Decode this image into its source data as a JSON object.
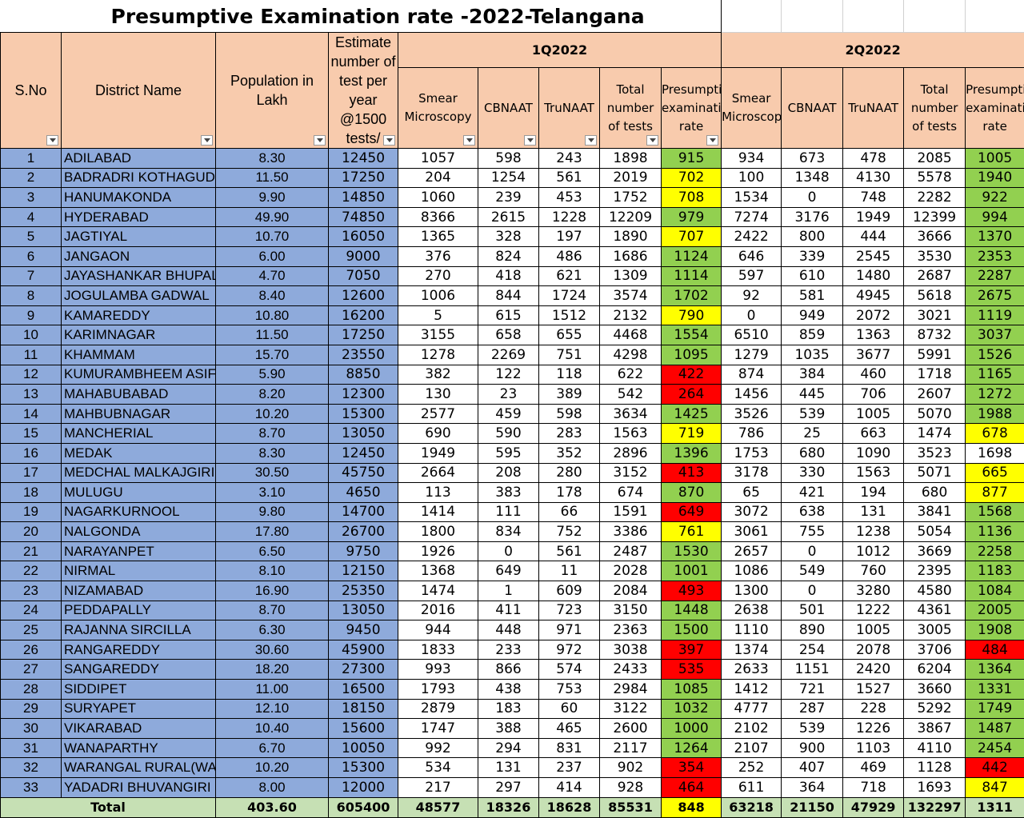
{
  "title": "Presumptive Examination rate -2022-Telangana",
  "headers": {
    "sno": "S.No",
    "district": "District Name",
    "population": "Population in Lakh",
    "estimate": "Estimate number of test per year @1500 tests/",
    "q1": "1Q2022",
    "q2": "2Q2022",
    "smear_q1": "Smear Microscopy",
    "smear_q2": "Smear Microscopy",
    "cbnaat": "CBNAAT",
    "trunaat": "TruNAAT",
    "total_tests": "Total number of tests",
    "pe_rate": "Presumptive examination rate"
  },
  "rows": [
    {
      "sno": "1",
      "name": "ADILABAD",
      "pop": "8.30",
      "est": "12450",
      "q1": [
        "1057",
        "598",
        "243",
        "1898"
      ],
      "q1_rate": "915",
      "q1_color": "green",
      "q2": [
        "934",
        "673",
        "478",
        "2085"
      ],
      "q2_rate": "1005",
      "q2_color": "green"
    },
    {
      "sno": "2",
      "name": "BADRADRI KOTHAGUDEM",
      "pop": "11.50",
      "est": "17250",
      "q1": [
        "204",
        "1254",
        "561",
        "2019"
      ],
      "q1_rate": "702",
      "q1_color": "yellow",
      "q2": [
        "100",
        "1348",
        "4130",
        "5578"
      ],
      "q2_rate": "1940",
      "q2_color": "green"
    },
    {
      "sno": "3",
      "name": "HANUMAKONDA",
      "pop": "9.90",
      "est": "14850",
      "q1": [
        "1060",
        "239",
        "453",
        "1752"
      ],
      "q1_rate": "708",
      "q1_color": "yellow",
      "q2": [
        "1534",
        "0",
        "748",
        "2282"
      ],
      "q2_rate": "922",
      "q2_color": "green"
    },
    {
      "sno": "4",
      "name": "HYDERABAD",
      "pop": "49.90",
      "est": "74850",
      "q1": [
        "8366",
        "2615",
        "1228",
        "12209"
      ],
      "q1_rate": "979",
      "q1_color": "green",
      "q2": [
        "7274",
        "3176",
        "1949",
        "12399"
      ],
      "q2_rate": "994",
      "q2_color": "green"
    },
    {
      "sno": "5",
      "name": "JAGTIYAL",
      "pop": "10.70",
      "est": "16050",
      "q1": [
        "1365",
        "328",
        "197",
        "1890"
      ],
      "q1_rate": "707",
      "q1_color": "yellow",
      "q2": [
        "2422",
        "800",
        "444",
        "3666"
      ],
      "q2_rate": "1370",
      "q2_color": "green"
    },
    {
      "sno": "6",
      "name": "JANGAON",
      "pop": "6.00",
      "est": "9000",
      "q1": [
        "376",
        "824",
        "486",
        "1686"
      ],
      "q1_rate": "1124",
      "q1_color": "green",
      "q2": [
        "646",
        "339",
        "2545",
        "3530"
      ],
      "q2_rate": "2353",
      "q2_color": "green"
    },
    {
      "sno": "7",
      "name": "JAYASHANKAR BHUPALPALLY",
      "pop": "4.70",
      "est": "7050",
      "q1": [
        "270",
        "418",
        "621",
        "1309"
      ],
      "q1_rate": "1114",
      "q1_color": "green",
      "q2": [
        "597",
        "610",
        "1480",
        "2687"
      ],
      "q2_rate": "2287",
      "q2_color": "green"
    },
    {
      "sno": "8",
      "name": "JOGULAMBA GADWAL",
      "pop": "8.40",
      "est": "12600",
      "q1": [
        "1006",
        "844",
        "1724",
        "3574"
      ],
      "q1_rate": "1702",
      "q1_color": "green",
      "q2": [
        "92",
        "581",
        "4945",
        "5618"
      ],
      "q2_rate": "2675",
      "q2_color": "green"
    },
    {
      "sno": "9",
      "name": "KAMAREDDY",
      "pop": "10.80",
      "est": "16200",
      "q1": [
        "5",
        "615",
        "1512",
        "2132"
      ],
      "q1_rate": "790",
      "q1_color": "yellow",
      "q2": [
        "0",
        "949",
        "2072",
        "3021"
      ],
      "q2_rate": "1119",
      "q2_color": "green"
    },
    {
      "sno": "10",
      "name": "KARIMNAGAR",
      "pop": "11.50",
      "est": "17250",
      "q1": [
        "3155",
        "658",
        "655",
        "4468"
      ],
      "q1_rate": "1554",
      "q1_color": "green",
      "q2": [
        "6510",
        "859",
        "1363",
        "8732"
      ],
      "q2_rate": "3037",
      "q2_color": "green"
    },
    {
      "sno": "11",
      "name": "KHAMMAM",
      "pop": "15.70",
      "est": "23550",
      "q1": [
        "1278",
        "2269",
        "751",
        "4298"
      ],
      "q1_rate": "1095",
      "q1_color": "green",
      "q2": [
        "1279",
        "1035",
        "3677",
        "5991"
      ],
      "q2_rate": "1526",
      "q2_color": "green"
    },
    {
      "sno": "12",
      "name": "KUMURAMBHEEM ASIFABAD",
      "pop": "5.90",
      "est": "8850",
      "q1": [
        "382",
        "122",
        "118",
        "622"
      ],
      "q1_rate": "422",
      "q1_color": "red",
      "q2": [
        "874",
        "384",
        "460",
        "1718"
      ],
      "q2_rate": "1165",
      "q2_color": "green"
    },
    {
      "sno": "13",
      "name": "MAHABUBABAD",
      "pop": "8.20",
      "est": "12300",
      "q1": [
        "130",
        "23",
        "389",
        "542"
      ],
      "q1_rate": "264",
      "q1_color": "red",
      "q2": [
        "1456",
        "445",
        "706",
        "2607"
      ],
      "q2_rate": "1272",
      "q2_color": "green"
    },
    {
      "sno": "14",
      "name": "MAHBUBNAGAR",
      "pop": "10.20",
      "est": "15300",
      "q1": [
        "2577",
        "459",
        "598",
        "3634"
      ],
      "q1_rate": "1425",
      "q1_color": "green",
      "q2": [
        "3526",
        "539",
        "1005",
        "5070"
      ],
      "q2_rate": "1988",
      "q2_color": "green"
    },
    {
      "sno": "15",
      "name": "MANCHERIAL",
      "pop": "8.70",
      "est": "13050",
      "q1": [
        "690",
        "590",
        "283",
        "1563"
      ],
      "q1_rate": "719",
      "q1_color": "yellow",
      "q2": [
        "786",
        "25",
        "663",
        "1474"
      ],
      "q2_rate": "678",
      "q2_color": "yellow"
    },
    {
      "sno": "16",
      "name": "MEDAK",
      "pop": "8.30",
      "est": "12450",
      "q1": [
        "1949",
        "595",
        "352",
        "2896"
      ],
      "q1_rate": "1396",
      "q1_color": "green",
      "q2": [
        "1753",
        "680",
        "1090",
        "3523"
      ],
      "q2_rate": "1698",
      "q2_color": "white"
    },
    {
      "sno": "17",
      "name": "MEDCHAL MALKAJGIRI",
      "pop": "30.50",
      "est": "45750",
      "q1": [
        "2664",
        "208",
        "280",
        "3152"
      ],
      "q1_rate": "413",
      "q1_color": "red",
      "q2": [
        "3178",
        "330",
        "1563",
        "5071"
      ],
      "q2_rate": "665",
      "q2_color": "yellow"
    },
    {
      "sno": "18",
      "name": "MULUGU",
      "pop": "3.10",
      "est": "4650",
      "q1": [
        "113",
        "383",
        "178",
        "674"
      ],
      "q1_rate": "870",
      "q1_color": "green",
      "q2": [
        "65",
        "421",
        "194",
        "680"
      ],
      "q2_rate": "877",
      "q2_color": "yellow"
    },
    {
      "sno": "19",
      "name": "NAGARKURNOOL",
      "pop": "9.80",
      "est": "14700",
      "q1": [
        "1414",
        "111",
        "66",
        "1591"
      ],
      "q1_rate": "649",
      "q1_color": "red",
      "q2": [
        "3072",
        "638",
        "131",
        "3841"
      ],
      "q2_rate": "1568",
      "q2_color": "green"
    },
    {
      "sno": "20",
      "name": "NALGONDA",
      "pop": "17.80",
      "est": "26700",
      "q1": [
        "1800",
        "834",
        "752",
        "3386"
      ],
      "q1_rate": "761",
      "q1_color": "yellow",
      "q2": [
        "3061",
        "755",
        "1238",
        "5054"
      ],
      "q2_rate": "1136",
      "q2_color": "green"
    },
    {
      "sno": "21",
      "name": "NARAYANPET",
      "pop": "6.50",
      "est": "9750",
      "q1": [
        "1926",
        "0",
        "561",
        "2487"
      ],
      "q1_rate": "1530",
      "q1_color": "green",
      "q2": [
        "2657",
        "0",
        "1012",
        "3669"
      ],
      "q2_rate": "2258",
      "q2_color": "green"
    },
    {
      "sno": "22",
      "name": "NIRMAL",
      "pop": "8.10",
      "est": "12150",
      "q1": [
        "1368",
        "649",
        "11",
        "2028"
      ],
      "q1_rate": "1001",
      "q1_color": "green",
      "q2": [
        "1086",
        "549",
        "760",
        "2395"
      ],
      "q2_rate": "1183",
      "q2_color": "green"
    },
    {
      "sno": "23",
      "name": "NIZAMABAD",
      "pop": "16.90",
      "est": "25350",
      "q1": [
        "1474",
        "1",
        "609",
        "2084"
      ],
      "q1_rate": "493",
      "q1_color": "red",
      "q2": [
        "1300",
        "0",
        "3280",
        "4580"
      ],
      "q2_rate": "1084",
      "q2_color": "green"
    },
    {
      "sno": "24",
      "name": "PEDDAPALLY",
      "pop": "8.70",
      "est": "13050",
      "q1": [
        "2016",
        "411",
        "723",
        "3150"
      ],
      "q1_rate": "1448",
      "q1_color": "green",
      "q2": [
        "2638",
        "501",
        "1222",
        "4361"
      ],
      "q2_rate": "2005",
      "q2_color": "green"
    },
    {
      "sno": "25",
      "name": "RAJANNA SIRCILLA",
      "pop": "6.30",
      "est": "9450",
      "q1": [
        "944",
        "448",
        "971",
        "2363"
      ],
      "q1_rate": "1500",
      "q1_color": "green",
      "q2": [
        "1110",
        "890",
        "1005",
        "3005"
      ],
      "q2_rate": "1908",
      "q2_color": "green"
    },
    {
      "sno": "26",
      "name": "RANGAREDDY",
      "pop": "30.60",
      "est": "45900",
      "q1": [
        "1833",
        "233",
        "972",
        "3038"
      ],
      "q1_rate": "397",
      "q1_color": "red",
      "q2": [
        "1374",
        "254",
        "2078",
        "3706"
      ],
      "q2_rate": "484",
      "q2_color": "red"
    },
    {
      "sno": "27",
      "name": "SANGAREDDY",
      "pop": "18.20",
      "est": "27300",
      "q1": [
        "993",
        "866",
        "574",
        "2433"
      ],
      "q1_rate": "535",
      "q1_color": "red",
      "q2": [
        "2633",
        "1151",
        "2420",
        "6204"
      ],
      "q2_rate": "1364",
      "q2_color": "green"
    },
    {
      "sno": "28",
      "name": "SIDDIPET",
      "pop": "11.00",
      "est": "16500",
      "q1": [
        "1793",
        "438",
        "753",
        "2984"
      ],
      "q1_rate": "1085",
      "q1_color": "green",
      "q2": [
        "1412",
        "721",
        "1527",
        "3660"
      ],
      "q2_rate": "1331",
      "q2_color": "green"
    },
    {
      "sno": "29",
      "name": "SURYAPET",
      "pop": "12.10",
      "est": "18150",
      "q1": [
        "2879",
        "183",
        "60",
        "3122"
      ],
      "q1_rate": "1032",
      "q1_color": "green",
      "q2": [
        "4777",
        "287",
        "228",
        "5292"
      ],
      "q2_rate": "1749",
      "q2_color": "green"
    },
    {
      "sno": "30",
      "name": "VIKARABAD",
      "pop": "10.40",
      "est": "15600",
      "q1": [
        "1747",
        "388",
        "465",
        "2600"
      ],
      "q1_rate": "1000",
      "q1_color": "green",
      "q2": [
        "2102",
        "539",
        "1226",
        "3867"
      ],
      "q2_rate": "1487",
      "q2_color": "green"
    },
    {
      "sno": "31",
      "name": "WANAPARTHY",
      "pop": "6.70",
      "est": "10050",
      "q1": [
        "992",
        "294",
        "831",
        "2117"
      ],
      "q1_rate": "1264",
      "q1_color": "green",
      "q2": [
        "2107",
        "900",
        "1103",
        "4110"
      ],
      "q2_rate": "2454",
      "q2_color": "green"
    },
    {
      "sno": "32",
      "name": "WARANGAL RURAL(WARANGAL)",
      "pop": "10.20",
      "est": "15300",
      "q1": [
        "534",
        "131",
        "237",
        "902"
      ],
      "q1_rate": "354",
      "q1_color": "red",
      "q2": [
        "252",
        "407",
        "469",
        "1128"
      ],
      "q2_rate": "442",
      "q2_color": "red"
    },
    {
      "sno": "33",
      "name": "YADADRI BHUVANGIRI",
      "pop": "8.00",
      "est": "12000",
      "q1": [
        "217",
        "297",
        "414",
        "928"
      ],
      "q1_rate": "464",
      "q1_color": "red",
      "q2": [
        "611",
        "364",
        "718",
        "1693"
      ],
      "q2_rate": "847",
      "q2_color": "yellow"
    }
  ],
  "total": {
    "label": "Total",
    "pop": "403.60",
    "est": "605400",
    "q1": [
      "48577",
      "18326",
      "18628",
      "85531"
    ],
    "q1_rate": "848",
    "q2": [
      "63218",
      "21150",
      "47929",
      "132297"
    ],
    "q2_rate": "1311"
  },
  "colors": {
    "header": "#f8cbad",
    "district_fill": "#8eaadb",
    "good": "#92d050",
    "medium": "#ffff00",
    "low": "#ff0000",
    "total_fill": "#c6e0b4"
  }
}
